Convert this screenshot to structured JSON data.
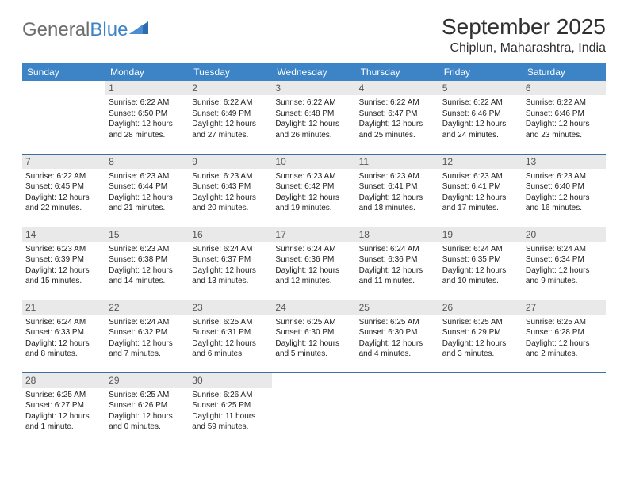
{
  "logo": {
    "general": "General",
    "blue": "Blue"
  },
  "title": "September 2025",
  "location": "Chiplun, Maharashtra, India",
  "colors": {
    "header_bg": "#3d84c6",
    "header_text": "#ffffff",
    "daynum_bg": "#e9e9e9",
    "row_border": "#3d6fa5",
    "text": "#222222"
  },
  "weekdays": [
    "Sunday",
    "Monday",
    "Tuesday",
    "Wednesday",
    "Thursday",
    "Friday",
    "Saturday"
  ],
  "weeks": [
    [
      {
        "n": "",
        "sr": "",
        "ss": "",
        "dl": ""
      },
      {
        "n": "1",
        "sr": "6:22 AM",
        "ss": "6:50 PM",
        "dl": "12 hours and 28 minutes."
      },
      {
        "n": "2",
        "sr": "6:22 AM",
        "ss": "6:49 PM",
        "dl": "12 hours and 27 minutes."
      },
      {
        "n": "3",
        "sr": "6:22 AM",
        "ss": "6:48 PM",
        "dl": "12 hours and 26 minutes."
      },
      {
        "n": "4",
        "sr": "6:22 AM",
        "ss": "6:47 PM",
        "dl": "12 hours and 25 minutes."
      },
      {
        "n": "5",
        "sr": "6:22 AM",
        "ss": "6:46 PM",
        "dl": "12 hours and 24 minutes."
      },
      {
        "n": "6",
        "sr": "6:22 AM",
        "ss": "6:46 PM",
        "dl": "12 hours and 23 minutes."
      }
    ],
    [
      {
        "n": "7",
        "sr": "6:22 AM",
        "ss": "6:45 PM",
        "dl": "12 hours and 22 minutes."
      },
      {
        "n": "8",
        "sr": "6:23 AM",
        "ss": "6:44 PM",
        "dl": "12 hours and 21 minutes."
      },
      {
        "n": "9",
        "sr": "6:23 AM",
        "ss": "6:43 PM",
        "dl": "12 hours and 20 minutes."
      },
      {
        "n": "10",
        "sr": "6:23 AM",
        "ss": "6:42 PM",
        "dl": "12 hours and 19 minutes."
      },
      {
        "n": "11",
        "sr": "6:23 AM",
        "ss": "6:41 PM",
        "dl": "12 hours and 18 minutes."
      },
      {
        "n": "12",
        "sr": "6:23 AM",
        "ss": "6:41 PM",
        "dl": "12 hours and 17 minutes."
      },
      {
        "n": "13",
        "sr": "6:23 AM",
        "ss": "6:40 PM",
        "dl": "12 hours and 16 minutes."
      }
    ],
    [
      {
        "n": "14",
        "sr": "6:23 AM",
        "ss": "6:39 PM",
        "dl": "12 hours and 15 minutes."
      },
      {
        "n": "15",
        "sr": "6:23 AM",
        "ss": "6:38 PM",
        "dl": "12 hours and 14 minutes."
      },
      {
        "n": "16",
        "sr": "6:24 AM",
        "ss": "6:37 PM",
        "dl": "12 hours and 13 minutes."
      },
      {
        "n": "17",
        "sr": "6:24 AM",
        "ss": "6:36 PM",
        "dl": "12 hours and 12 minutes."
      },
      {
        "n": "18",
        "sr": "6:24 AM",
        "ss": "6:36 PM",
        "dl": "12 hours and 11 minutes."
      },
      {
        "n": "19",
        "sr": "6:24 AM",
        "ss": "6:35 PM",
        "dl": "12 hours and 10 minutes."
      },
      {
        "n": "20",
        "sr": "6:24 AM",
        "ss": "6:34 PM",
        "dl": "12 hours and 9 minutes."
      }
    ],
    [
      {
        "n": "21",
        "sr": "6:24 AM",
        "ss": "6:33 PM",
        "dl": "12 hours and 8 minutes."
      },
      {
        "n": "22",
        "sr": "6:24 AM",
        "ss": "6:32 PM",
        "dl": "12 hours and 7 minutes."
      },
      {
        "n": "23",
        "sr": "6:25 AM",
        "ss": "6:31 PM",
        "dl": "12 hours and 6 minutes."
      },
      {
        "n": "24",
        "sr": "6:25 AM",
        "ss": "6:30 PM",
        "dl": "12 hours and 5 minutes."
      },
      {
        "n": "25",
        "sr": "6:25 AM",
        "ss": "6:30 PM",
        "dl": "12 hours and 4 minutes."
      },
      {
        "n": "26",
        "sr": "6:25 AM",
        "ss": "6:29 PM",
        "dl": "12 hours and 3 minutes."
      },
      {
        "n": "27",
        "sr": "6:25 AM",
        "ss": "6:28 PM",
        "dl": "12 hours and 2 minutes."
      }
    ],
    [
      {
        "n": "28",
        "sr": "6:25 AM",
        "ss": "6:27 PM",
        "dl": "12 hours and 1 minute."
      },
      {
        "n": "29",
        "sr": "6:25 AM",
        "ss": "6:26 PM",
        "dl": "12 hours and 0 minutes."
      },
      {
        "n": "30",
        "sr": "6:26 AM",
        "ss": "6:25 PM",
        "dl": "11 hours and 59 minutes."
      },
      {
        "n": "",
        "sr": "",
        "ss": "",
        "dl": ""
      },
      {
        "n": "",
        "sr": "",
        "ss": "",
        "dl": ""
      },
      {
        "n": "",
        "sr": "",
        "ss": "",
        "dl": ""
      },
      {
        "n": "",
        "sr": "",
        "ss": "",
        "dl": ""
      }
    ]
  ],
  "labels": {
    "sunrise": "Sunrise:",
    "sunset": "Sunset:",
    "daylight": "Daylight:"
  }
}
